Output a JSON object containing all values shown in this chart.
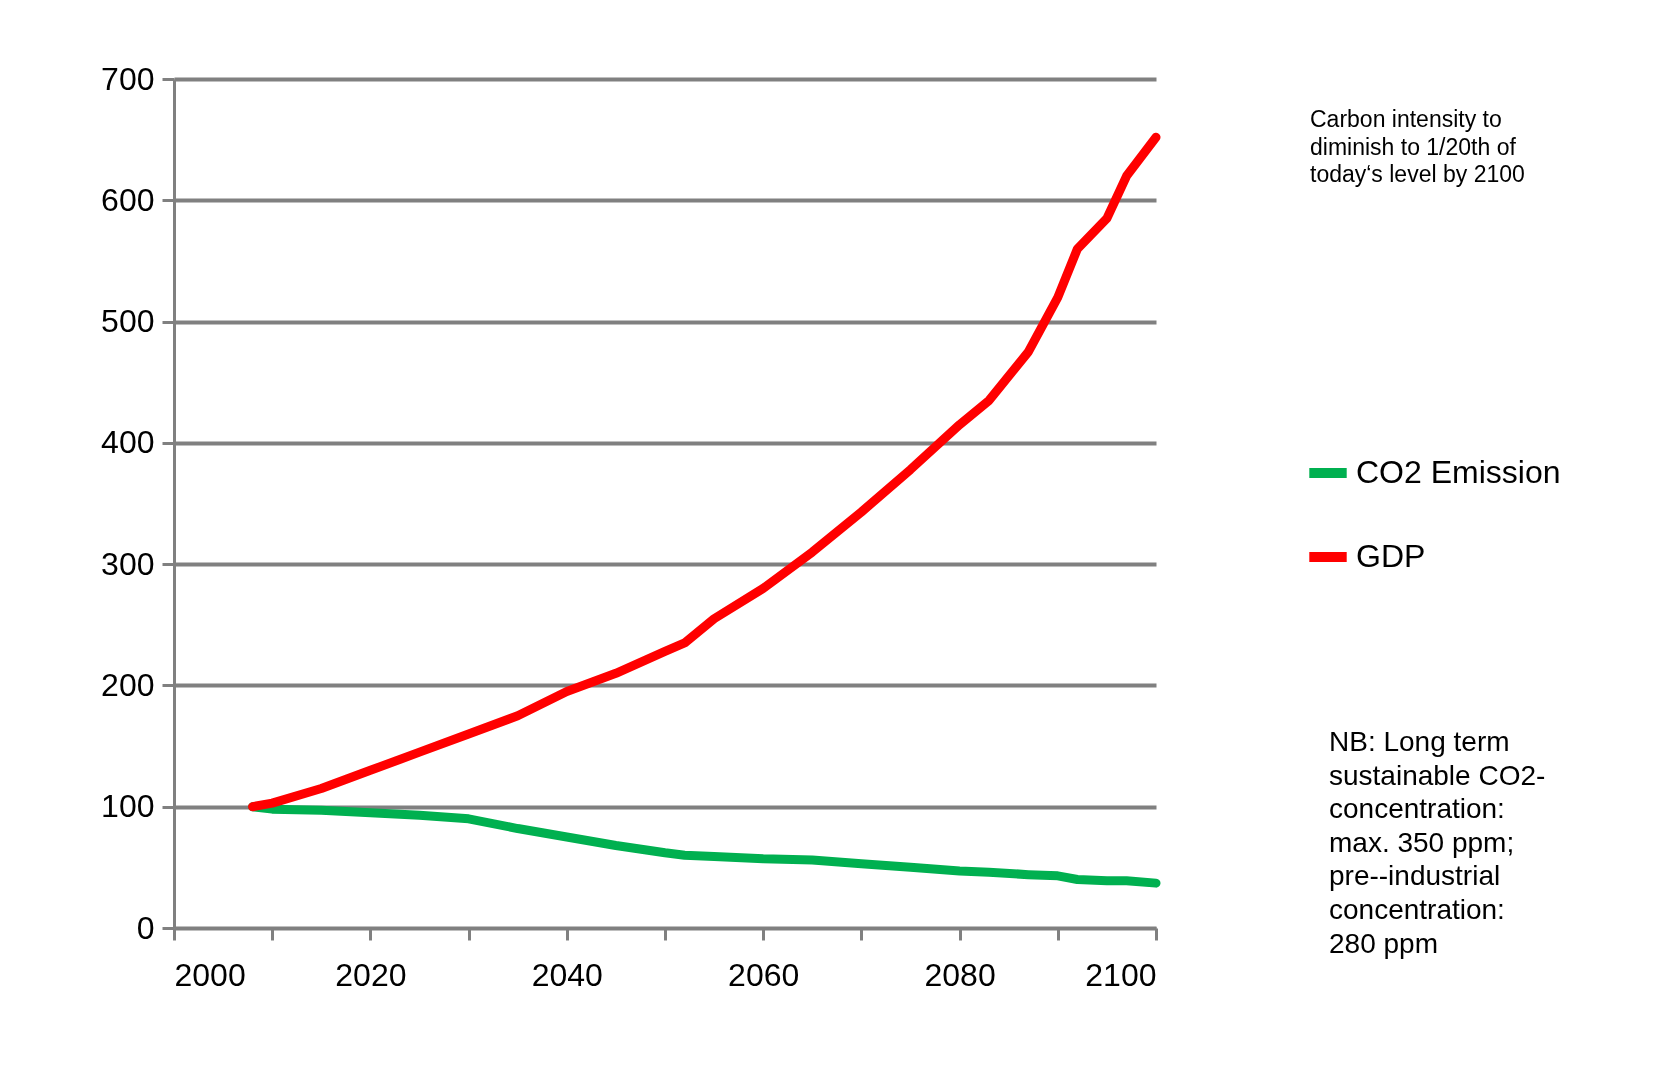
{
  "chart_data": {
    "type": "line",
    "x": [
      2008,
      2010,
      2015,
      2020,
      2025,
      2030,
      2035,
      2040,
      2045,
      2050,
      2052,
      2055,
      2060,
      2065,
      2070,
      2075,
      2080,
      2083,
      2087,
      2090,
      2092,
      2095,
      2097,
      2100
    ],
    "series": [
      {
        "name": "CO2 Emission",
        "color": "#00b050",
        "values": [
          100,
          98,
          97,
          95,
          93,
          90,
          82,
          75,
          68,
          62,
          60,
          59,
          57,
          56,
          53,
          50,
          47,
          46,
          44,
          43,
          40,
          39,
          39,
          37
        ]
      },
      {
        "name": "GDP",
        "color": "#ff0000",
        "values": [
          100,
          103,
          115,
          130,
          145,
          160,
          175,
          195,
          210,
          228,
          235,
          255,
          280,
          310,
          343,
          378,
          415,
          435,
          475,
          520,
          560,
          585,
          620,
          652
        ]
      }
    ],
    "xlim": [
      2000,
      2100
    ],
    "xticks": [
      2000,
      {
        "value": 2010,
        "label": null
      },
      2020,
      {
        "value": 2030,
        "label": null
      },
      2040,
      {
        "value": 2050,
        "label": null
      },
      2060,
      {
        "value": 2070,
        "label": null
      },
      2080,
      {
        "value": 2090,
        "label": null
      },
      2100
    ],
    "ylim": [
      0,
      700
    ],
    "yticks": [
      0,
      100,
      200,
      300,
      400,
      500,
      600,
      700
    ],
    "grid": "y",
    "legend": "right",
    "marker": "none",
    "line_style": "solid",
    "annotations": [
      "Carbon intensity to\ndiminish to 1/20th of\ntoday‘s level by 2100",
      "NB: Long term\nsustainable CO2-\nconcentration:\nmax. 350 ppm;\npre--industrial\nconcentration:\n280 ppm"
    ]
  }
}
